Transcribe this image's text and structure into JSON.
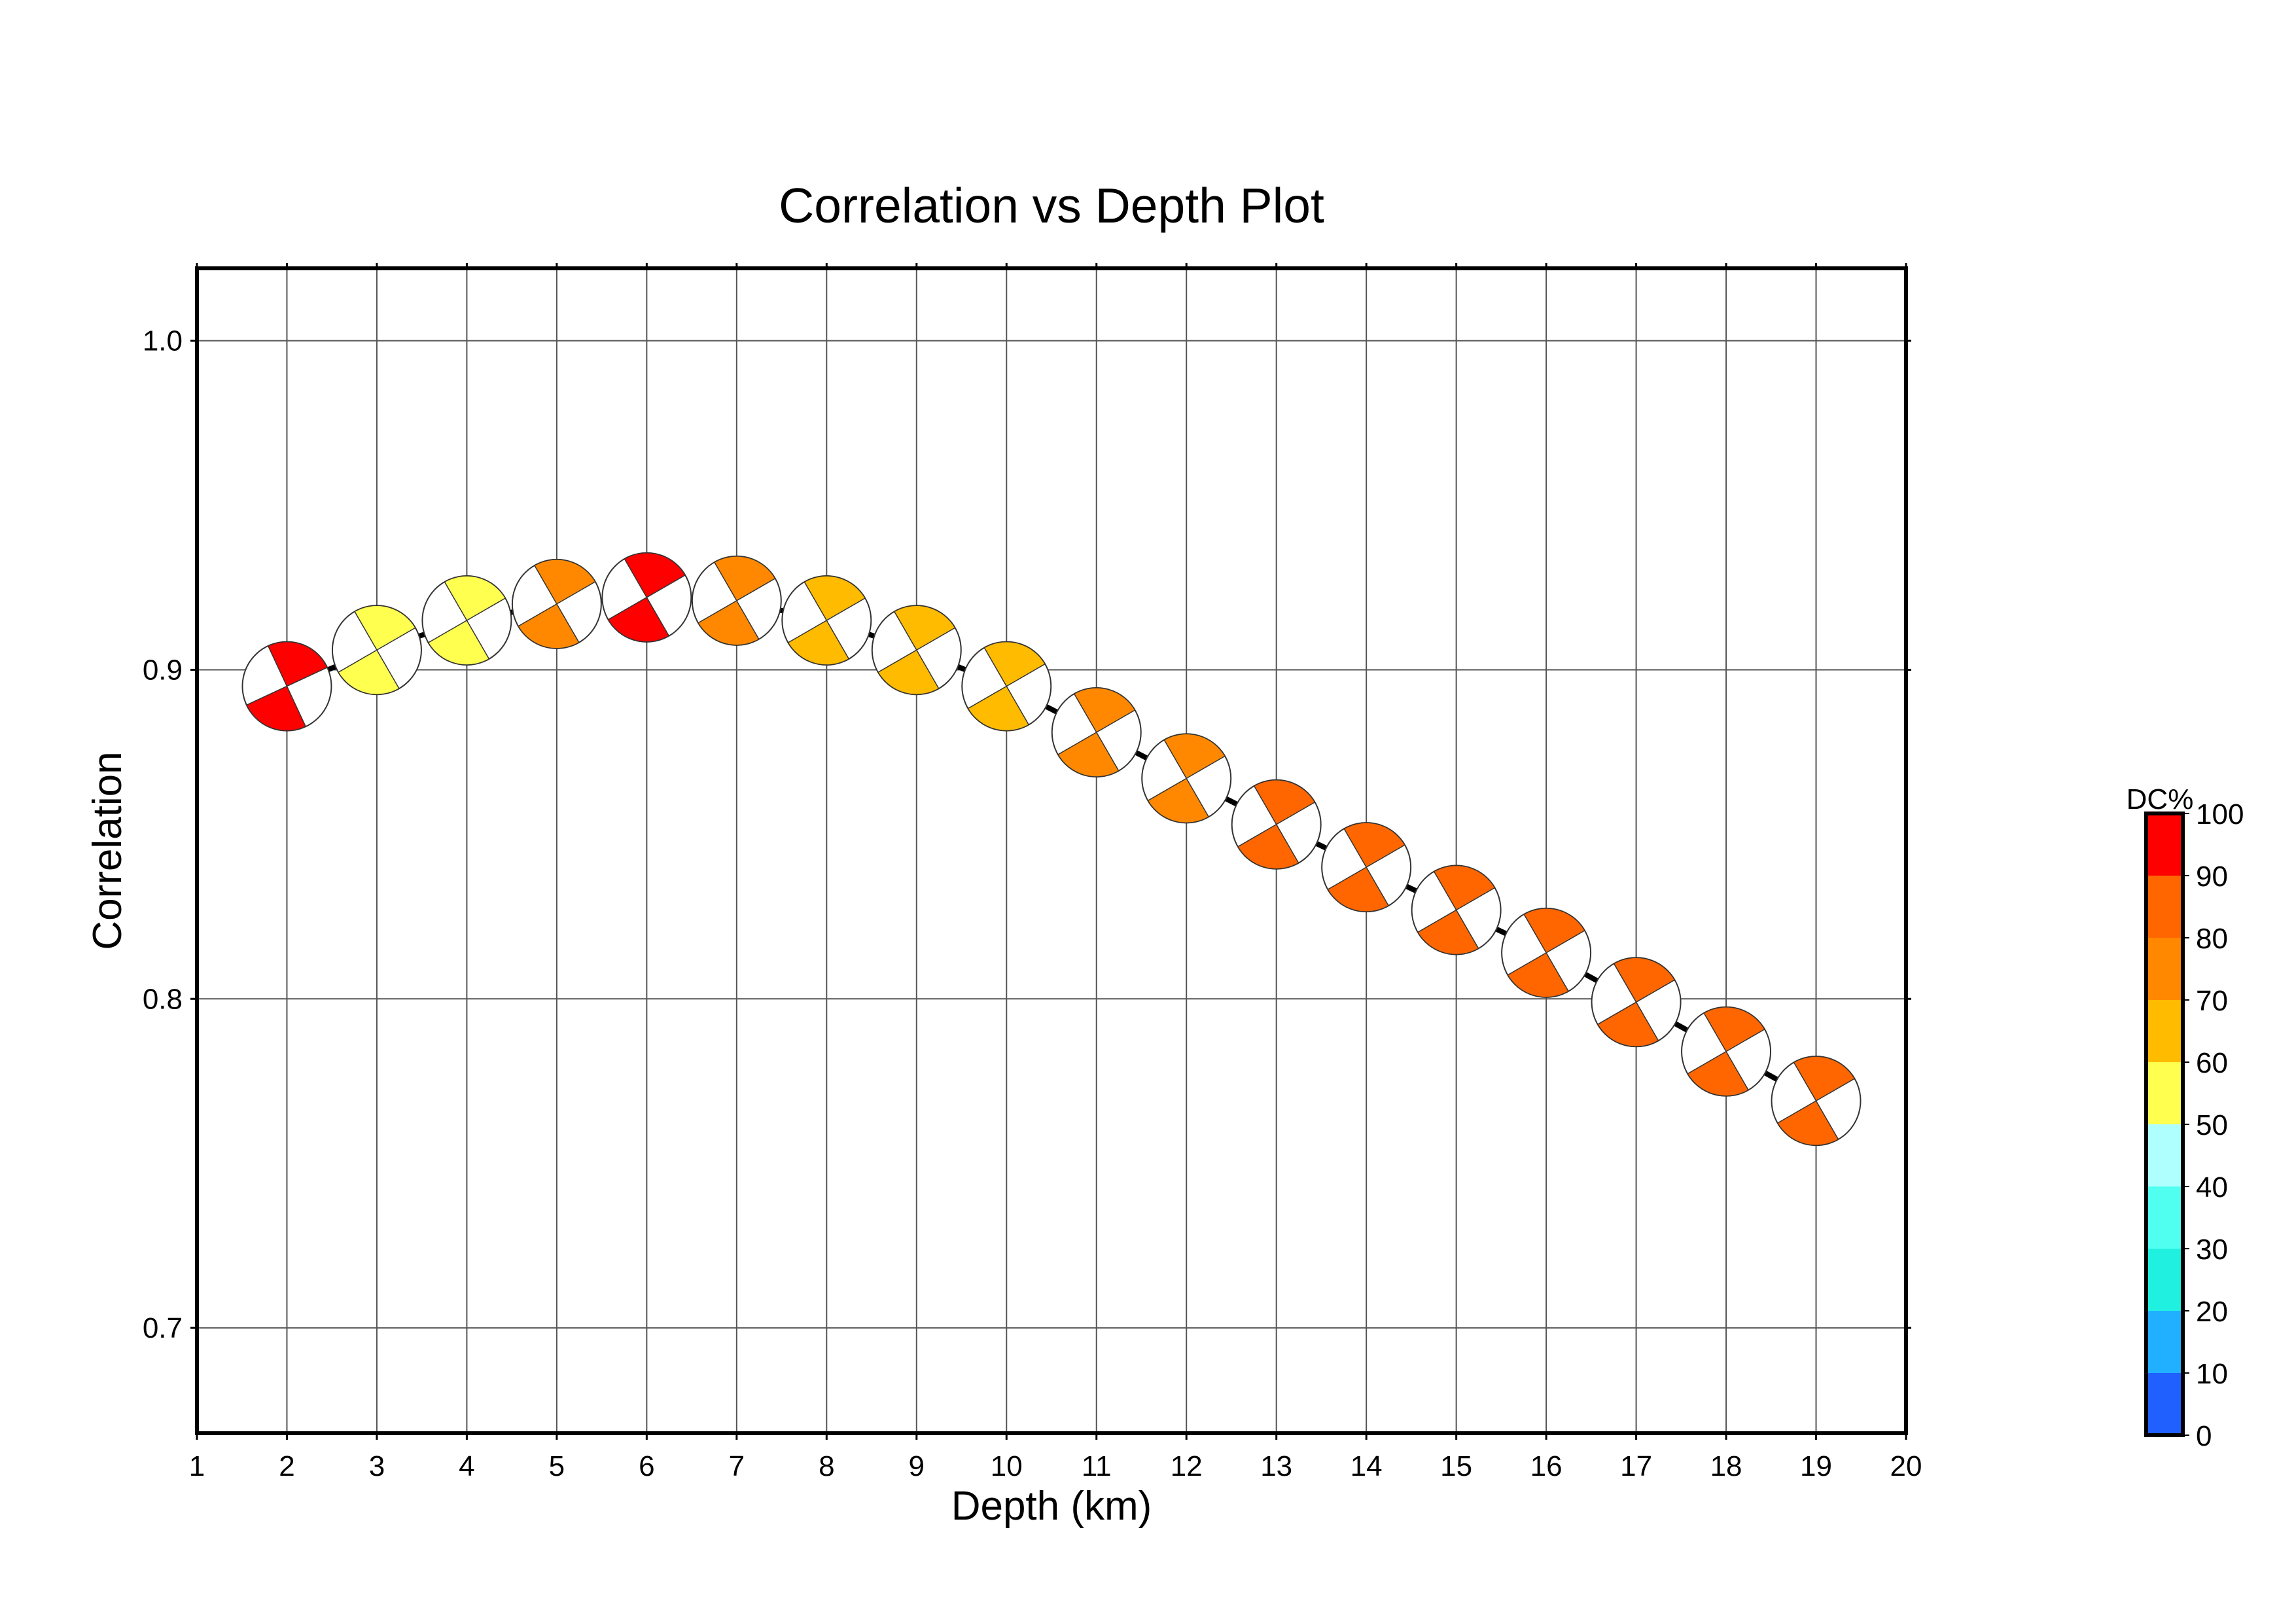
{
  "chart_data": {
    "type": "scatter",
    "title": "Correlation vs Depth Plot",
    "xlabel": "Depth (km)",
    "ylabel": "Correlation",
    "xlim": [
      1,
      20
    ],
    "ylim": [
      0.668,
      1.022
    ],
    "x_ticks": [
      1,
      2,
      3,
      4,
      5,
      6,
      7,
      8,
      9,
      10,
      11,
      12,
      13,
      14,
      15,
      16,
      17,
      18,
      19,
      20
    ],
    "y_ticks": [
      0.7,
      0.8,
      0.9,
      1.0
    ],
    "y_tick_labels": [
      "0.7",
      "0.8",
      "0.9",
      "1.0"
    ],
    "grid": true,
    "marker": "focal-mechanism beachball",
    "points": [
      {
        "depth": 2,
        "correlation": 0.895,
        "dc": 91,
        "strike": 25
      },
      {
        "depth": 3,
        "correlation": 0.906,
        "dc": 55,
        "strike": 30
      },
      {
        "depth": 4,
        "correlation": 0.915,
        "dc": 55,
        "strike": 30
      },
      {
        "depth": 5,
        "correlation": 0.92,
        "dc": 75,
        "strike": 30
      },
      {
        "depth": 6,
        "correlation": 0.922,
        "dc": 92,
        "strike": 30
      },
      {
        "depth": 7,
        "correlation": 0.921,
        "dc": 75,
        "strike": 30
      },
      {
        "depth": 8,
        "correlation": 0.915,
        "dc": 65,
        "strike": 30
      },
      {
        "depth": 9,
        "correlation": 0.906,
        "dc": 65,
        "strike": 30
      },
      {
        "depth": 10,
        "correlation": 0.895,
        "dc": 65,
        "strike": 30
      },
      {
        "depth": 11,
        "correlation": 0.881,
        "dc": 75,
        "strike": 30
      },
      {
        "depth": 12,
        "correlation": 0.867,
        "dc": 75,
        "strike": 30
      },
      {
        "depth": 13,
        "correlation": 0.853,
        "dc": 85,
        "strike": 30
      },
      {
        "depth": 14,
        "correlation": 0.84,
        "dc": 85,
        "strike": 30
      },
      {
        "depth": 15,
        "correlation": 0.827,
        "dc": 85,
        "strike": 30
      },
      {
        "depth": 16,
        "correlation": 0.814,
        "dc": 85,
        "strike": 30
      },
      {
        "depth": 17,
        "correlation": 0.799,
        "dc": 85,
        "strike": 30
      },
      {
        "depth": 18,
        "correlation": 0.784,
        "dc": 85,
        "strike": 30
      },
      {
        "depth": 19,
        "correlation": 0.769,
        "dc": 85,
        "strike": 30
      }
    ],
    "colorbar": {
      "label": "DC%",
      "min": 0,
      "max": 100,
      "tick_labels": [
        "0",
        "10",
        "20",
        "30",
        "40",
        "50",
        "60",
        "70",
        "80",
        "90",
        "100"
      ],
      "bands": [
        "#2060ff",
        "#20b0ff",
        "#20f0e0",
        "#50fff0",
        "#b0ffff",
        "#ffff50",
        "#ffbb00",
        "#ff8800",
        "#ff6600",
        "#ff0000"
      ]
    }
  }
}
